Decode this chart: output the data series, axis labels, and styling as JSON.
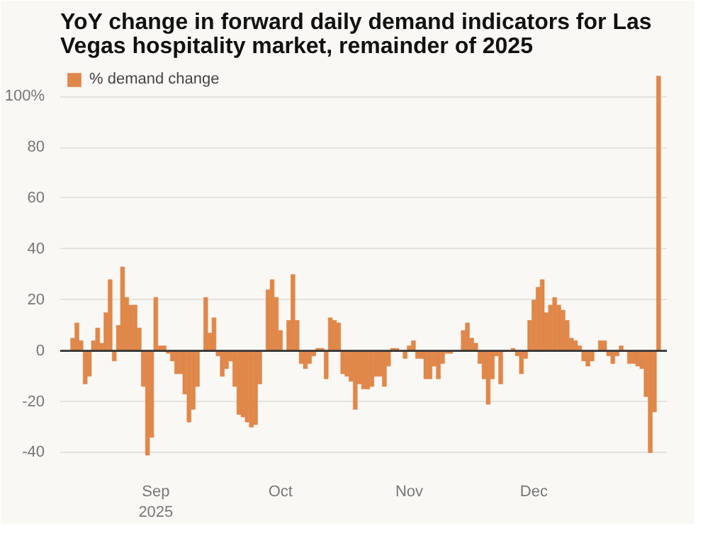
{
  "chart_data": {
    "type": "bar",
    "title": "YoY change in forward daily demand indicators for Las Vegas hospitality market, remainder of 2025",
    "x": [
      "2025-08-12",
      "2025-08-13",
      "2025-08-14",
      "2025-08-15",
      "2025-08-16",
      "2025-08-17",
      "2025-08-18",
      "2025-08-19",
      "2025-08-20",
      "2025-08-21",
      "2025-08-22",
      "2025-08-23",
      "2025-08-24",
      "2025-08-25",
      "2025-08-26",
      "2025-08-27",
      "2025-08-28",
      "2025-08-29",
      "2025-08-30",
      "2025-08-31",
      "2025-09-01",
      "2025-09-02",
      "2025-09-03",
      "2025-09-04",
      "2025-09-05",
      "2025-09-06",
      "2025-09-07",
      "2025-09-08",
      "2025-09-09",
      "2025-09-10",
      "2025-09-11",
      "2025-09-12",
      "2025-09-13",
      "2025-09-14",
      "2025-09-15",
      "2025-09-16",
      "2025-09-17",
      "2025-09-18",
      "2025-09-19",
      "2025-09-20",
      "2025-09-21",
      "2025-09-22",
      "2025-09-23",
      "2025-09-24",
      "2025-09-25",
      "2025-09-26",
      "2025-09-27",
      "2025-09-28",
      "2025-09-29",
      "2025-09-30",
      "2025-10-01",
      "2025-10-02",
      "2025-10-03",
      "2025-10-04",
      "2025-10-05",
      "2025-10-06",
      "2025-10-07",
      "2025-10-08",
      "2025-10-09",
      "2025-10-10",
      "2025-10-11",
      "2025-10-12",
      "2025-10-13",
      "2025-10-14",
      "2025-10-15",
      "2025-10-16",
      "2025-10-17",
      "2025-10-18",
      "2025-10-19",
      "2025-10-20",
      "2025-10-21",
      "2025-10-22",
      "2025-10-23",
      "2025-10-24",
      "2025-10-25",
      "2025-10-26",
      "2025-10-27",
      "2025-10-28",
      "2025-10-29",
      "2025-10-30",
      "2025-10-31",
      "2025-11-01",
      "2025-11-02",
      "2025-11-03",
      "2025-11-04",
      "2025-11-05",
      "2025-11-06",
      "2025-11-07",
      "2025-11-08",
      "2025-11-09",
      "2025-11-10",
      "2025-11-11",
      "2025-11-12",
      "2025-11-13",
      "2025-11-14",
      "2025-11-15",
      "2025-11-16",
      "2025-11-17",
      "2025-11-18",
      "2025-11-19",
      "2025-11-20",
      "2025-11-21",
      "2025-11-22",
      "2025-11-23",
      "2025-11-24",
      "2025-11-25",
      "2025-11-26",
      "2025-11-27",
      "2025-11-28",
      "2025-11-29",
      "2025-11-30",
      "2025-12-01",
      "2025-12-02",
      "2025-12-03",
      "2025-12-04",
      "2025-12-05",
      "2025-12-06",
      "2025-12-07",
      "2025-12-08",
      "2025-12-09",
      "2025-12-10",
      "2025-12-11",
      "2025-12-12",
      "2025-12-13",
      "2025-12-14",
      "2025-12-15",
      "2025-12-16",
      "2025-12-17",
      "2025-12-18",
      "2025-12-19",
      "2025-12-20",
      "2025-12-21",
      "2025-12-22",
      "2025-12-23",
      "2025-12-24",
      "2025-12-25",
      "2025-12-26",
      "2025-12-27",
      "2025-12-28",
      "2025-12-29",
      "2025-12-30",
      "2025-12-31"
    ],
    "series": [
      {
        "name": "% demand change",
        "color": "#e0874a",
        "values": [
          5,
          11,
          4,
          -13,
          -10,
          4,
          9,
          3,
          15,
          28,
          -4,
          10,
          33,
          21,
          18,
          18,
          9,
          -14,
          -41,
          -34,
          21,
          2,
          2,
          -1,
          -4,
          -9,
          -9,
          -17,
          -28,
          -23,
          -14,
          0,
          21,
          7,
          13,
          -2,
          -10,
          -7,
          -4,
          -14,
          -25,
          -26,
          -28,
          -30,
          -29,
          -13,
          0,
          24,
          28,
          21,
          8,
          0,
          12,
          30,
          12,
          -5,
          -7,
          -5,
          -2,
          1,
          1,
          -11,
          13,
          12,
          11,
          -9,
          -10,
          -12,
          -23,
          -13,
          -15,
          -15,
          -14,
          -10,
          -10,
          -14,
          -6,
          1,
          1,
          0,
          -3,
          2,
          4,
          -3,
          -3,
          -11,
          -11,
          -6,
          -11,
          -5,
          -1,
          -1,
          0,
          0,
          8,
          11,
          5,
          3,
          -5,
          -11,
          -21,
          -11,
          -2,
          -13,
          0,
          0,
          1,
          -2,
          -9,
          -3,
          12,
          20,
          25,
          28,
          15,
          18,
          21,
          18,
          16,
          12,
          5,
          4,
          2,
          -4,
          -6,
          -4,
          0,
          4,
          4,
          -2,
          -5,
          -2,
          2,
          0,
          -5,
          -5,
          -6,
          -7,
          -18,
          -40,
          -24,
          108
        ]
      }
    ],
    "xlim": [
      "2025-08-09",
      "2026-01-02"
    ],
    "xticks": [
      {
        "value": "2025-09-01",
        "label": "Sep\n2025"
      },
      {
        "value": "2025-10-01",
        "label": "Oct"
      },
      {
        "value": "2025-11-01",
        "label": "Nov"
      },
      {
        "value": "2025-12-01",
        "label": "Dec"
      }
    ],
    "ylim": [
      -46,
      112
    ],
    "yticks": [
      -40,
      -20,
      0,
      20,
      40,
      60,
      80,
      {
        "value": 100,
        "label": "100%"
      }
    ],
    "ref_lines": [
      {
        "axis": "y",
        "value": 0,
        "color": "#333333"
      }
    ],
    "grid": "y",
    "legend": "top left"
  }
}
